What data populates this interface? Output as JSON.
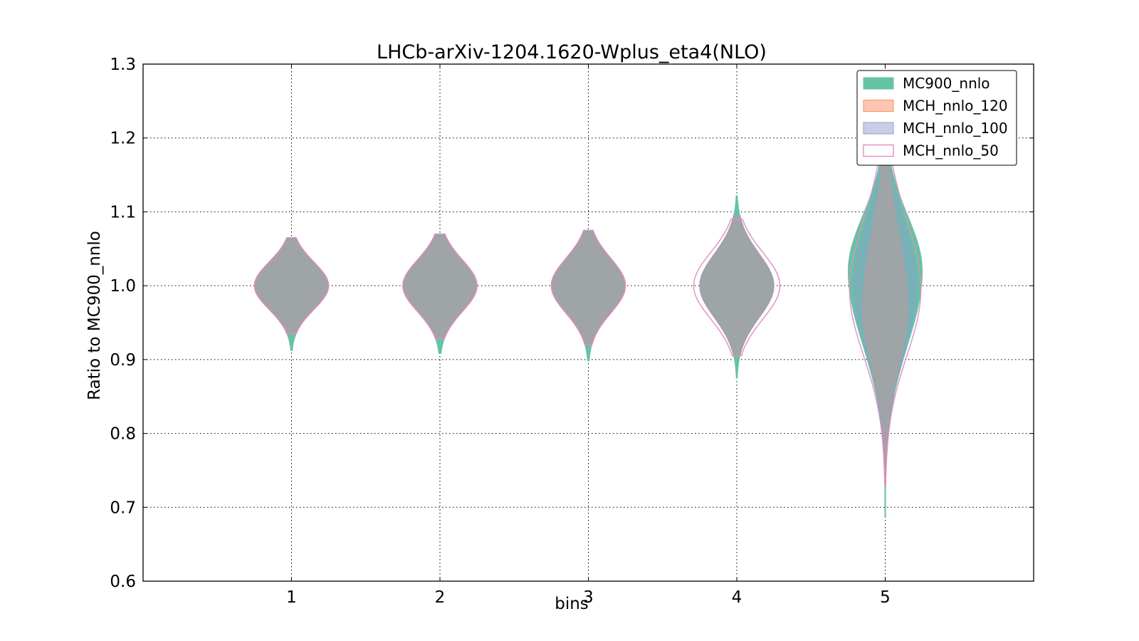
{
  "chart_data": {
    "type": "violin",
    "title": "LHCb-arXiv-1204.1620-Wplus_eta4(NLO)",
    "xlabel": "bins",
    "ylabel": "Ratio to MC900_nnlo",
    "categories": [
      "1",
      "2",
      "3",
      "4",
      "5"
    ],
    "xlim": [
      0,
      6
    ],
    "ylim": [
      0.6,
      1.3
    ],
    "yticks": [
      "0.6",
      "0.7",
      "0.8",
      "0.9",
      "1.0",
      "1.1",
      "1.2",
      "1.3"
    ],
    "grid": true,
    "legend_position": "top-right",
    "series": [
      {
        "name": "MC900_nnlo",
        "color": "#66c2a5",
        "style": "filled",
        "violins": [
          {
            "bin": 1,
            "center": 1.0,
            "min": 0.912,
            "max": 1.065,
            "width": 0.25,
            "upper_sigma": 0.032,
            "lower_sigma": 0.032
          },
          {
            "bin": 2,
            "center": 1.0,
            "min": 0.908,
            "max": 1.07,
            "width": 0.25,
            "upper_sigma": 0.035,
            "lower_sigma": 0.035
          },
          {
            "bin": 3,
            "center": 1.0,
            "min": 0.898,
            "max": 1.075,
            "width": 0.25,
            "upper_sigma": 0.037,
            "lower_sigma": 0.037
          },
          {
            "bin": 4,
            "center": 1.0,
            "min": 0.875,
            "max": 1.122,
            "width": 0.25,
            "upper_sigma": 0.043,
            "lower_sigma": 0.043
          },
          {
            "bin": 5,
            "center": 1.02,
            "min": 0.688,
            "max": 1.27,
            "width": 0.25,
            "upper_sigma": 0.075,
            "lower_sigma": 0.1
          }
        ]
      },
      {
        "name": "MCH_nnlo_120",
        "color": "#fc8d62",
        "style": "filled",
        "violins": [
          {
            "bin": 1,
            "center": 1.0,
            "min": 0.935,
            "max": 1.063,
            "width": 0.25,
            "upper_sigma": 0.032,
            "lower_sigma": 0.032
          },
          {
            "bin": 2,
            "center": 1.0,
            "min": 0.928,
            "max": 1.068,
            "width": 0.25,
            "upper_sigma": 0.035,
            "lower_sigma": 0.035
          },
          {
            "bin": 3,
            "center": 1.0,
            "min": 0.92,
            "max": 1.073,
            "width": 0.25,
            "upper_sigma": 0.037,
            "lower_sigma": 0.037
          },
          {
            "bin": 4,
            "center": 1.0,
            "min": 0.905,
            "max": 1.095,
            "width": 0.25,
            "upper_sigma": 0.043,
            "lower_sigma": 0.043
          },
          {
            "bin": 5,
            "center": 0.97,
            "min": 0.73,
            "max": 1.23,
            "width": 0.15,
            "upper_sigma": 0.1,
            "lower_sigma": 0.08
          }
        ]
      },
      {
        "name": "MCH_nnlo_100",
        "color": "#8da0cb",
        "style": "filled",
        "violins": [
          {
            "bin": 1,
            "center": 1.0,
            "min": 0.935,
            "max": 1.063,
            "width": 0.25,
            "upper_sigma": 0.032,
            "lower_sigma": 0.032
          },
          {
            "bin": 2,
            "center": 1.0,
            "min": 0.928,
            "max": 1.068,
            "width": 0.25,
            "upper_sigma": 0.035,
            "lower_sigma": 0.035
          },
          {
            "bin": 3,
            "center": 1.0,
            "min": 0.92,
            "max": 1.073,
            "width": 0.25,
            "upper_sigma": 0.037,
            "lower_sigma": 0.037
          },
          {
            "bin": 4,
            "center": 1.0,
            "min": 0.905,
            "max": 1.095,
            "width": 0.25,
            "upper_sigma": 0.043,
            "lower_sigma": 0.043
          },
          {
            "bin": 5,
            "center": 1.0,
            "min": 0.73,
            "max": 1.24,
            "width": 0.21,
            "upper_sigma": 0.085,
            "lower_sigma": 0.09
          }
        ]
      },
      {
        "name": "MCH_nnlo_50",
        "color": "#e78ac3",
        "style": "outline",
        "violins": [
          {
            "bin": 1,
            "center": 1.0,
            "min": 0.935,
            "max": 1.065,
            "width": 0.25,
            "upper_sigma": 0.032,
            "lower_sigma": 0.032
          },
          {
            "bin": 2,
            "center": 1.0,
            "min": 0.928,
            "max": 1.07,
            "width": 0.25,
            "upper_sigma": 0.035,
            "lower_sigma": 0.035
          },
          {
            "bin": 3,
            "center": 1.0,
            "min": 0.92,
            "max": 1.075,
            "width": 0.25,
            "upper_sigma": 0.037,
            "lower_sigma": 0.037
          },
          {
            "bin": 4,
            "center": 1.0,
            "min": 0.905,
            "max": 1.09,
            "width": 0.29,
            "upper_sigma": 0.045,
            "lower_sigma": 0.045
          },
          {
            "bin": 5,
            "center": 0.995,
            "min": 0.73,
            "max": 1.25,
            "width": 0.24,
            "upper_sigma": 0.095,
            "lower_sigma": 0.09
          }
        ]
      }
    ]
  }
}
